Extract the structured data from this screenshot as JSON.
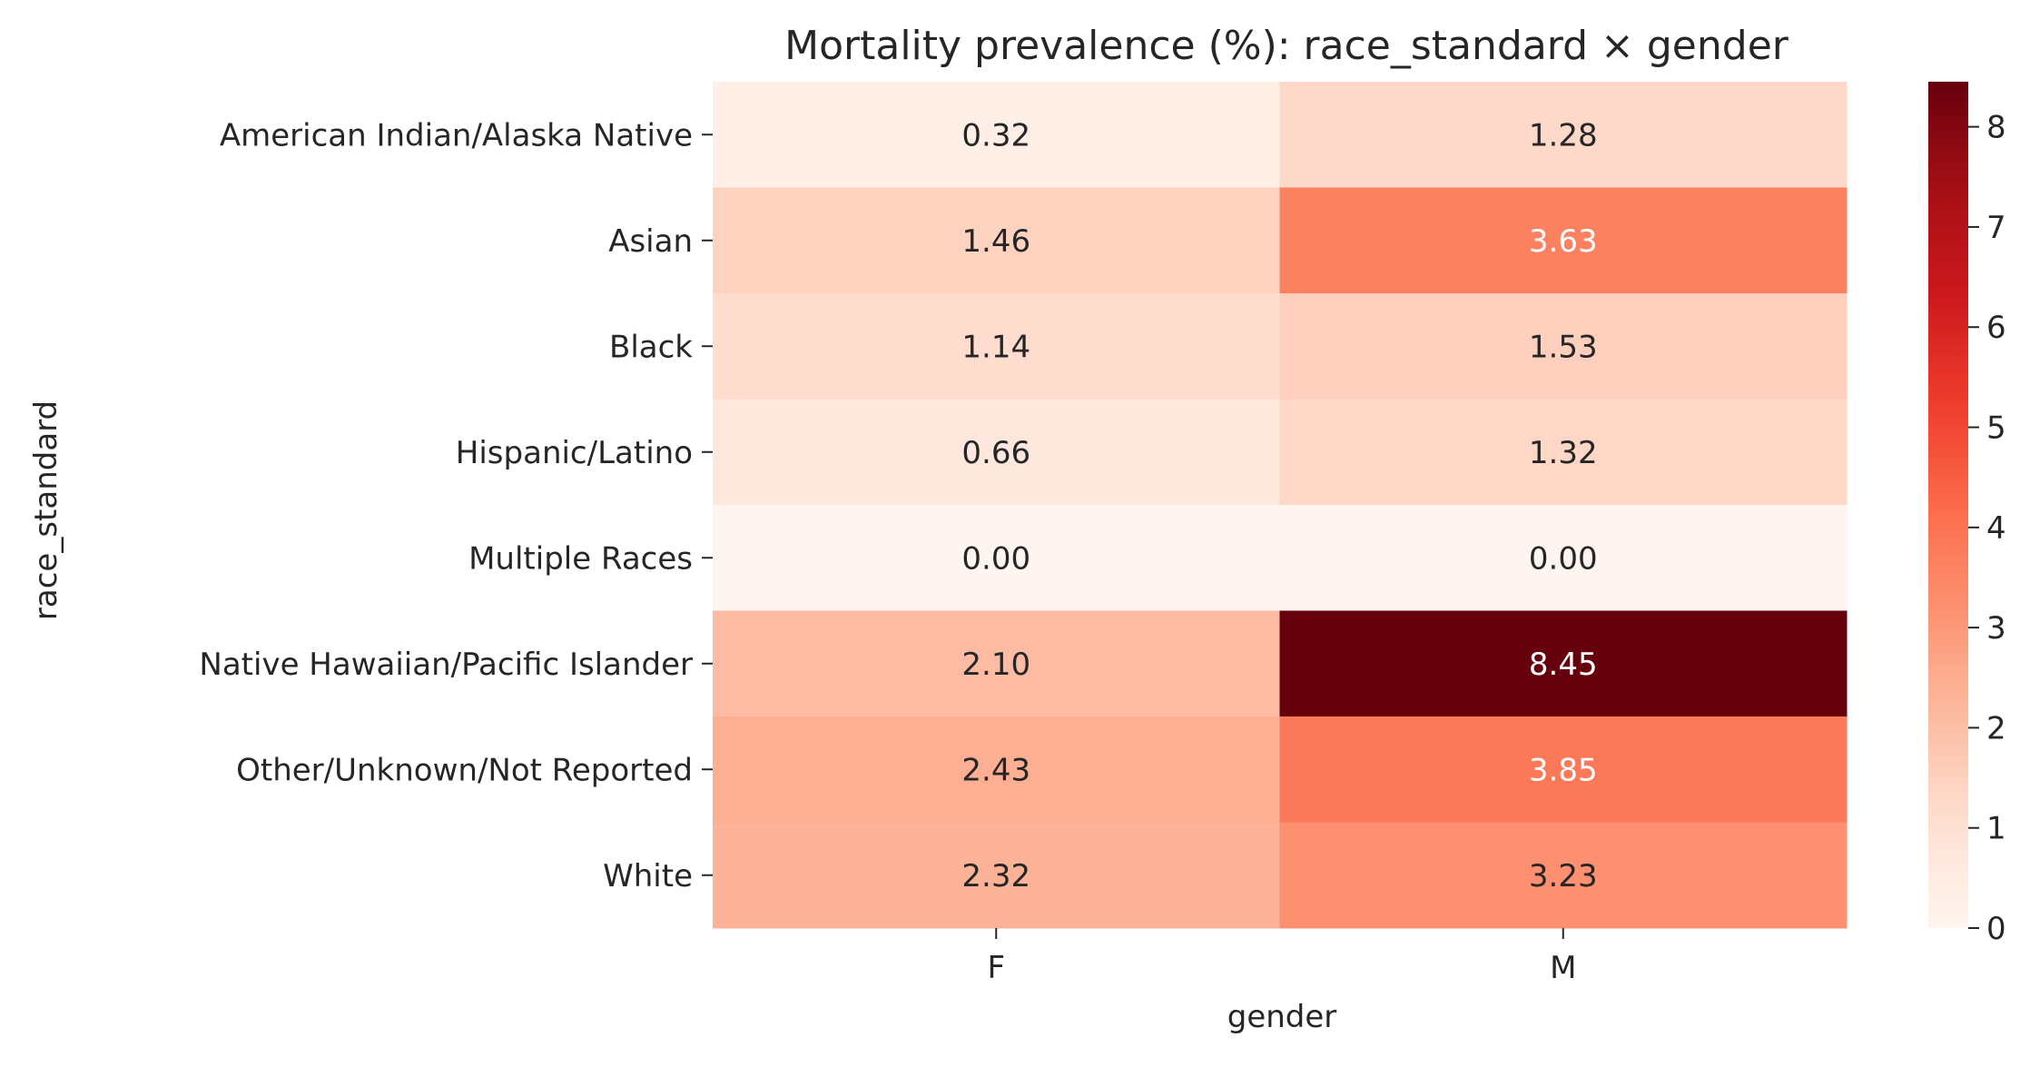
{
  "chart_data": {
    "type": "heatmap",
    "title": "Mortality prevalence (%): race_standard × gender",
    "xlabel": "gender",
    "ylabel": "race_standard",
    "x_categories": [
      "F",
      "M"
    ],
    "y_categories": [
      "American Indian/Alaska Native",
      "Asian",
      "Black",
      "Hispanic/Latino",
      "Multiple Races",
      "Native Hawaiian/Pacific Islander",
      "Other/Unknown/Not Reported",
      "White"
    ],
    "values": [
      [
        0.32,
        1.28
      ],
      [
        1.46,
        3.63
      ],
      [
        1.14,
        1.53
      ],
      [
        0.66,
        1.32
      ],
      [
        0.0,
        0.0
      ],
      [
        2.1,
        8.45
      ],
      [
        2.43,
        3.85
      ],
      [
        2.32,
        3.23
      ]
    ],
    "value_labels": [
      [
        "0.32",
        "1.28"
      ],
      [
        "1.46",
        "3.63"
      ],
      [
        "1.14",
        "1.53"
      ],
      [
        "0.66",
        "1.32"
      ],
      [
        "0.00",
        "0.00"
      ],
      [
        "2.10",
        "8.45"
      ],
      [
        "2.43",
        "3.85"
      ],
      [
        "2.32",
        "3.23"
      ]
    ],
    "colormap": "Reds",
    "colorbar": {
      "vmin": 0,
      "vmax": 8.45,
      "ticks": [
        0,
        1,
        2,
        3,
        4,
        5,
        6,
        7,
        8
      ]
    }
  }
}
